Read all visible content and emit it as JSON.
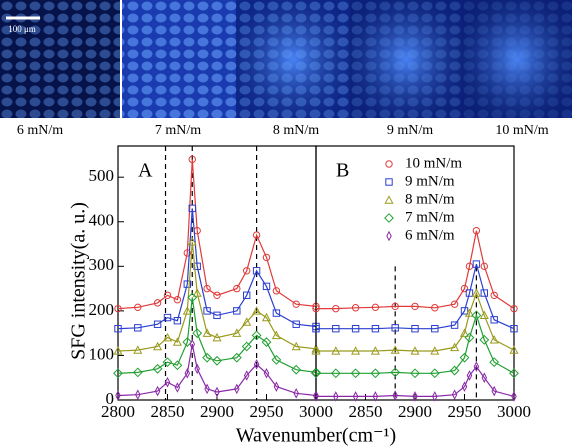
{
  "images": {
    "labels": [
      "6 mN/m",
      "7 mN/m",
      "8 mN/m",
      "9 mN/m",
      "10 mN/m"
    ],
    "scale_bar": "100 μm"
  },
  "chart_data": [
    {
      "type": "line",
      "annotation": "A",
      "y_label": "SFG intensity(a. u.)",
      "x_label": "Wavenumber(cm⁻¹)",
      "x": [
        2800,
        2820,
        2840,
        2850,
        2860,
        2870,
        2875,
        2880,
        2890,
        2900,
        2920,
        2930,
        2940,
        2950,
        2960,
        2980,
        3000
      ],
      "xlim": [
        2800,
        3000
      ],
      "xticks": [
        2800,
        2850,
        2900,
        2950,
        3000
      ],
      "ylim": [
        0,
        570
      ],
      "yticks": [
        0,
        100,
        200,
        300,
        400,
        500
      ],
      "reference_lines": [
        2848,
        2875,
        2940
      ],
      "series": [
        {
          "color": "#e03a3a",
          "marker": "circle",
          "values": [
            205,
            208,
            218,
            235,
            225,
            330,
            540,
            380,
            250,
            235,
            250,
            290,
            370,
            320,
            245,
            215,
            210
          ]
        },
        {
          "color": "#2b3fd0",
          "marker": "square",
          "values": [
            160,
            162,
            170,
            185,
            178,
            260,
            430,
            300,
            200,
            190,
            200,
            235,
            290,
            255,
            195,
            170,
            165
          ]
        },
        {
          "color": "#9a9a1e",
          "marker": "triangle",
          "values": [
            110,
            112,
            120,
            140,
            130,
            200,
            355,
            240,
            150,
            140,
            150,
            175,
            200,
            185,
            145,
            120,
            115
          ]
        },
        {
          "color": "#22a032",
          "marker": "diamond",
          "values": [
            60,
            62,
            70,
            85,
            78,
            130,
            230,
            150,
            95,
            88,
            95,
            120,
            145,
            130,
            90,
            68,
            62
          ]
        },
        {
          "color": "#8a2aa8",
          "marker": "thin-diamond",
          "values": [
            10,
            12,
            20,
            40,
            28,
            60,
            125,
            70,
            25,
            18,
            25,
            55,
            80,
            60,
            30,
            15,
            10
          ]
        }
      ]
    },
    {
      "type": "line",
      "annotation": "B",
      "legend": "upper-right",
      "x": [
        2800,
        2820,
        2840,
        2860,
        2880,
        2900,
        2920,
        2940,
        2950,
        2955,
        2962,
        2970,
        2980,
        3000
      ],
      "xlim": [
        2800,
        3000
      ],
      "xticks": [
        2850,
        2900,
        2950,
        3000
      ],
      "ylim": [
        0,
        570
      ],
      "reference_lines": [
        2880,
        2962
      ],
      "series": [
        {
          "name": "10 mN/m",
          "color": "#e03a3a",
          "marker": "circle",
          "values": [
            205,
            205,
            207,
            208,
            210,
            210,
            207,
            215,
            250,
            300,
            380,
            300,
            235,
            205
          ]
        },
        {
          "name": "9 mN/m",
          "color": "#2b3fd0",
          "marker": "square",
          "values": [
            160,
            160,
            160,
            160,
            162,
            160,
            160,
            168,
            200,
            240,
            305,
            240,
            180,
            160
          ]
        },
        {
          "name": "8 mN/m",
          "color": "#9a9a1e",
          "marker": "triangle",
          "values": [
            110,
            110,
            110,
            110,
            112,
            110,
            110,
            118,
            150,
            195,
            240,
            190,
            135,
            112
          ]
        },
        {
          "name": "7 mN/m",
          "color": "#22a032",
          "marker": "diamond",
          "values": [
            60,
            60,
            60,
            60,
            62,
            60,
            60,
            66,
            95,
            140,
            190,
            135,
            85,
            60
          ]
        },
        {
          "name": "6 mN/m",
          "color": "#8a2aa8",
          "marker": "thin-diamond",
          "values": [
            8,
            8,
            8,
            8,
            10,
            8,
            8,
            12,
            30,
            55,
            75,
            50,
            20,
            8
          ]
        }
      ]
    }
  ]
}
